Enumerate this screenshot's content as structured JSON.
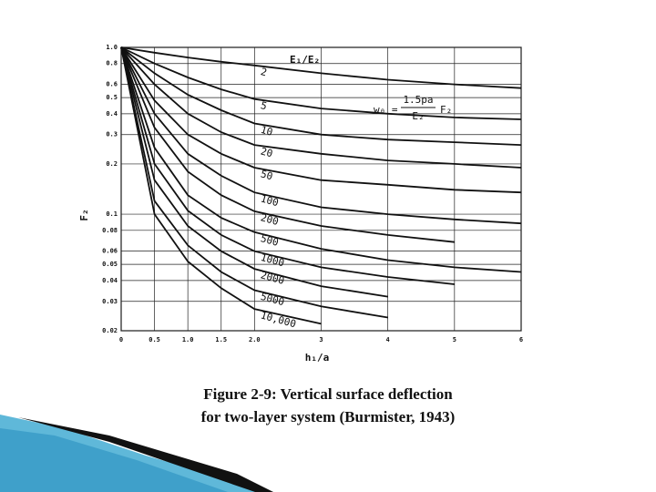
{
  "chart_data": {
    "type": "line",
    "y_label": "F₂",
    "x_label": "h₁/a",
    "legend_title": "E₁/E₂",
    "formula": {
      "lhs": "w₀ =",
      "numerator": "1.5pa",
      "denominator": "E₂",
      "factor": "F₂"
    },
    "log_y": true,
    "grid": true,
    "color": "#111111",
    "x": [
      0,
      0.5,
      1,
      1.5,
      2,
      3,
      4,
      5,
      6
    ],
    "xlim": [
      0,
      6
    ],
    "xticks": [
      0,
      0.5,
      {
        "value": 1,
        "label": "1.0"
      },
      1.5,
      {
        "value": 2,
        "label": "2.0"
      },
      3,
      4,
      5,
      6
    ],
    "ylim": [
      0.02,
      1
    ],
    "yticks": [
      {
        "value": 1,
        "label": "1.0"
      },
      0.8,
      0.6,
      0.5,
      0.4,
      0.3,
      0.2,
      0.1,
      0.08,
      0.06,
      0.05,
      0.04,
      0.03,
      0.02
    ],
    "series": [
      {
        "name": "2",
        "values": [
          1,
          0.93,
          0.87,
          0.82,
          0.78,
          0.7,
          0.64,
          0.6,
          0.57
        ]
      },
      {
        "name": "5",
        "values": [
          1,
          0.8,
          0.66,
          0.56,
          0.49,
          0.43,
          0.4,
          0.38,
          0.37
        ]
      },
      {
        "name": "10",
        "values": [
          1,
          0.7,
          0.52,
          0.42,
          0.35,
          0.3,
          0.28,
          0.27,
          0.26
        ]
      },
      {
        "name": "20",
        "values": [
          1,
          0.6,
          0.4,
          0.31,
          0.26,
          0.23,
          0.21,
          0.2,
          0.19
        ]
      },
      {
        "name": "50",
        "values": [
          1,
          0.48,
          0.3,
          0.23,
          0.19,
          0.16,
          0.15,
          0.14,
          0.135
        ]
      },
      {
        "name": "100",
        "values": [
          1,
          0.4,
          0.23,
          0.17,
          0.135,
          0.11,
          0.1,
          0.093,
          0.088
        ]
      },
      {
        "name": "200",
        "values": [
          1,
          0.33,
          0.18,
          0.13,
          0.104,
          0.085,
          0.075,
          0.068,
          null
        ]
      },
      {
        "name": "500",
        "values": [
          1,
          0.25,
          0.13,
          0.095,
          0.078,
          0.062,
          0.053,
          0.048,
          0.045
        ]
      },
      {
        "name": "1000",
        "values": [
          1,
          0.2,
          0.105,
          0.075,
          0.06,
          0.048,
          0.042,
          0.038,
          null
        ]
      },
      {
        "name": "2000",
        "values": [
          1,
          0.16,
          0.085,
          0.06,
          0.047,
          0.037,
          0.032,
          null,
          null
        ]
      },
      {
        "name": "5000",
        "values": [
          1,
          0.12,
          0.065,
          0.045,
          0.035,
          0.028,
          0.024,
          null,
          null
        ]
      },
      {
        "name": "10,000",
        "values": [
          1,
          0.1,
          0.052,
          0.036,
          0.027,
          0.022,
          null,
          null,
          null
        ]
      }
    ]
  },
  "caption": [
    "Figure 2-9: Vertical surface deflection",
    "for two-layer system (Burmister, 1943)"
  ]
}
